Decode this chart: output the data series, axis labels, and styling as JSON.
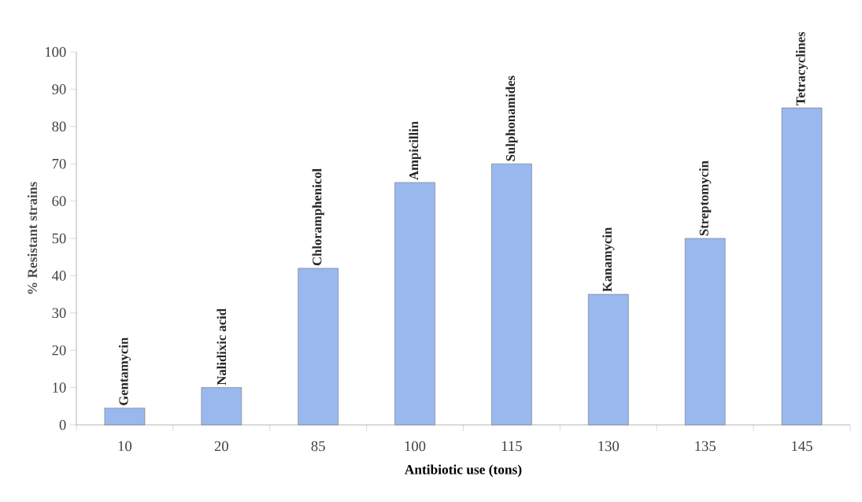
{
  "chart_data": {
    "type": "bar",
    "categories": [
      "10",
      "20",
      "85",
      "100",
      "115",
      "130",
      "135",
      "145"
    ],
    "values": [
      4.5,
      10,
      42,
      65,
      70,
      35,
      50,
      85
    ],
    "color": "#99b9ee",
    "xlabel": "Antibiotic use (tons)",
    "ylabel": "% Resistant strains",
    "ylim": [
      0,
      100
    ],
    "yticks": [
      0,
      10,
      20,
      30,
      40,
      50,
      60,
      70,
      80,
      90,
      100
    ],
    "annotations": [
      {
        "text": "Gentamycin",
        "x": "10",
        "y": 4.5
      },
      {
        "text": "Nalidixic acid",
        "x": "20",
        "y": 10
      },
      {
        "text": "Chloramphenicol",
        "x": "85",
        "y": 42
      },
      {
        "text": "Ampicillin",
        "x": "100",
        "y": 65
      },
      {
        "text": "Sulphonamides",
        "x": "115",
        "y": 70
      },
      {
        "text": "Kanamycin",
        "x": "130",
        "y": 35
      },
      {
        "text": "Streptomycin",
        "x": "135",
        "y": 50
      },
      {
        "text": "Tetracyclines",
        "x": "145",
        "y": 85
      }
    ]
  }
}
